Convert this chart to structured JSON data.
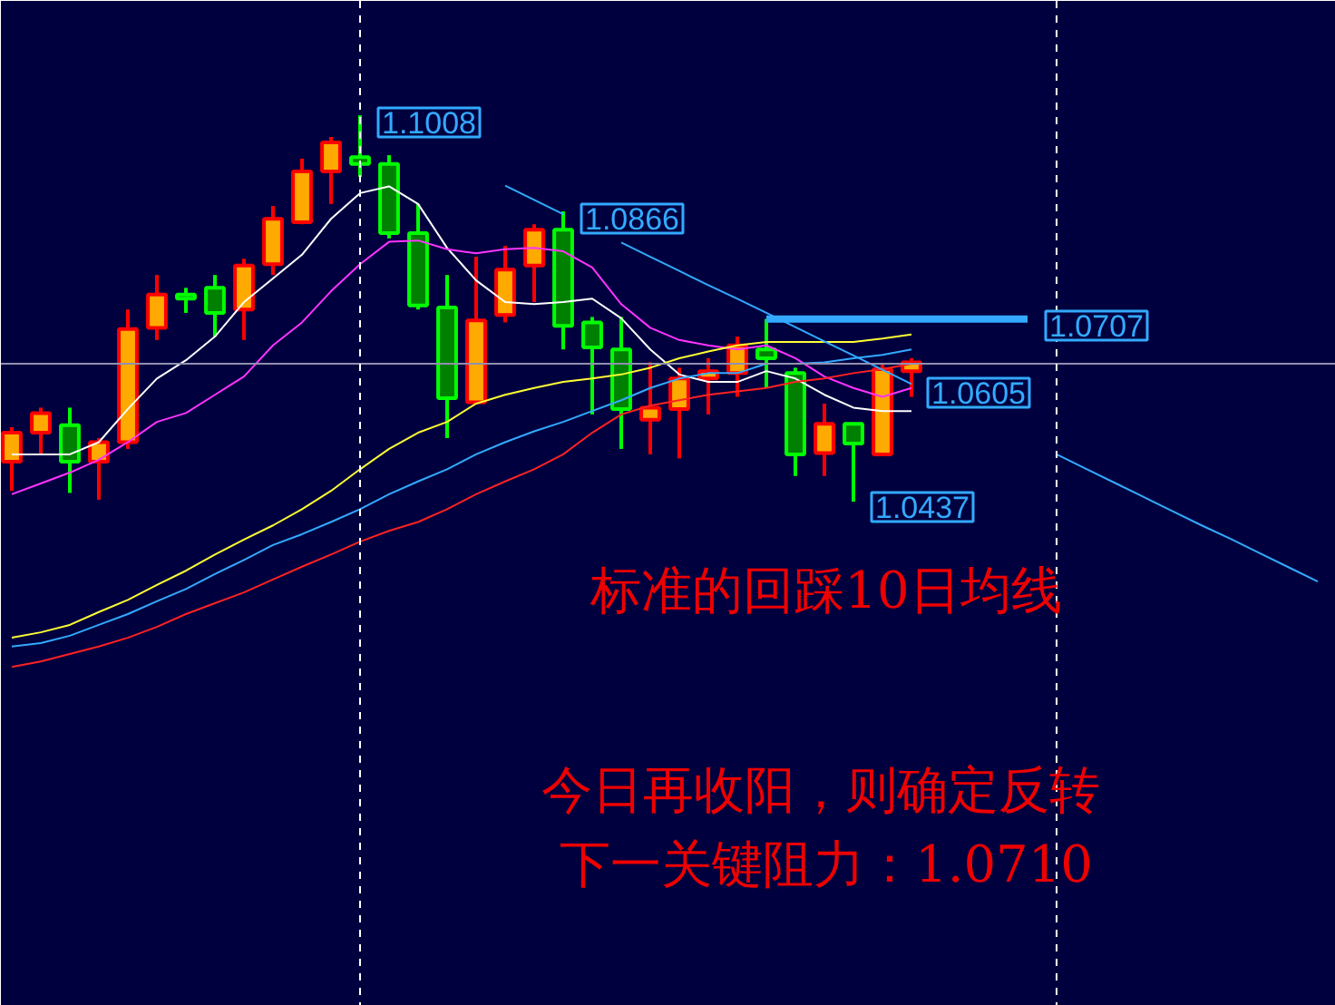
{
  "chart_data": {
    "type": "candlestick",
    "categories": [
      null,
      null,
      null,
      null,
      null,
      null,
      null,
      null,
      null,
      null,
      null,
      null,
      null,
      null,
      null,
      null,
      null,
      null,
      null,
      null,
      null,
      null,
      null,
      null,
      null,
      null,
      null,
      null,
      null,
      null,
      null,
      null,
      null,
      null,
      null,
      null,
      null,
      null,
      null,
      null,
      null,
      null,
      null,
      null,
      null,
      null
    ],
    "ohlc": [
      [
        1.0496,
        1.0547,
        1.0453,
        1.0539
      ],
      [
        1.0539,
        1.0576,
        1.0507,
        1.0568
      ],
      [
        1.055,
        1.0576,
        1.045,
        1.0496
      ],
      [
        1.0496,
        1.0531,
        1.044,
        1.0525
      ],
      [
        1.0525,
        1.0721,
        1.0515,
        1.0692
      ],
      [
        1.0694,
        1.0772,
        1.0676,
        1.0743
      ],
      [
        1.0743,
        1.0753,
        1.0716,
        1.0737
      ],
      [
        1.0753,
        1.0772,
        1.0681,
        1.0716
      ],
      [
        1.0721,
        1.0796,
        1.0676,
        1.0786
      ],
      [
        1.0788,
        1.0874,
        1.0772,
        1.0855
      ],
      [
        1.085,
        1.0944,
        1.0847,
        1.0925
      ],
      [
        1.0925,
        1.0976,
        1.0877,
        1.0968
      ],
      [
        1.0946,
        1.1008,
        1.0917,
        1.0936
      ],
      [
        1.0936,
        1.0949,
        1.0826,
        1.0834
      ],
      [
        1.0834,
        1.0877,
        1.0721,
        1.0727
      ],
      [
        1.0724,
        1.0772,
        1.0531,
        1.059
      ],
      [
        1.0584,
        1.0799,
        1.0584,
        1.0705
      ],
      [
        1.0713,
        1.0815,
        1.0702,
        1.078
      ],
      [
        1.0786,
        1.0847,
        1.0732,
        1.0839
      ],
      [
        1.0839,
        1.0866,
        1.0662,
        1.0697
      ],
      [
        1.0702,
        1.071,
        1.0566,
        1.0665
      ],
      [
        1.0662,
        1.071,
        1.0515,
        1.0574
      ],
      [
        1.0558,
        1.0643,
        1.0507,
        1.0576
      ],
      [
        1.0574,
        1.0635,
        1.0501,
        1.0619
      ],
      [
        1.0619,
        1.0649,
        1.0566,
        1.063
      ],
      [
        1.0627,
        1.0681,
        1.0592,
        1.0668
      ],
      [
        1.0662,
        1.0707,
        1.0605,
        1.0649
      ],
      [
        1.0627,
        1.0635,
        1.0475,
        1.0507
      ],
      [
        1.0509,
        1.0582,
        1.0475,
        1.0552
      ],
      [
        1.0552,
        1.0552,
        1.0437,
        1.0523
      ],
      [
        1.0507,
        1.0641,
        1.0507,
        1.0633
      ],
      [
        1.063,
        1.0649,
        1.0592,
        1.0643
      ],
      null,
      null,
      null,
      null,
      null,
      null,
      null,
      null,
      null,
      null,
      null,
      null,
      null,
      null
    ],
    "colors": [
      "#ffaa00",
      "#ffaa00",
      "#008000",
      "#ffaa00",
      "#ffaa00",
      "#ffaa00",
      "#008000",
      "#008000",
      "#ffaa00",
      "#ffaa00",
      "#ffaa00",
      "#ffaa00",
      "#008000",
      "#008000",
      "#008000",
      "#008000",
      "#ffaa00",
      "#ffaa00",
      "#ffaa00",
      "#008000",
      "#008000",
      "#008000",
      "#ffaa00",
      "#ffaa00",
      "#ffaa00",
      "#ffaa00",
      "#008000",
      "#008000",
      "#ffaa00",
      "#008000",
      "#ffaa00",
      "#ffaa00",
      null,
      null,
      null,
      null,
      null,
      null,
      null,
      null,
      null,
      null,
      null,
      null,
      null,
      null
    ],
    "series": [
      {
        "type": "line",
        "color": "#ffffff",
        "values": [
          1.0507,
          1.0507,
          1.0507,
          1.0525,
          1.0574,
          1.0619,
          1.0646,
          1.0681,
          1.0732,
          1.0767,
          1.0802,
          1.0855,
          1.0893,
          1.0903,
          1.0877,
          1.0812,
          1.0764,
          1.0732,
          1.0729,
          1.0732,
          1.0737,
          1.0708,
          1.0662,
          1.0625,
          1.0614,
          1.0614,
          1.063,
          1.0619,
          1.0595,
          1.0576,
          1.0571,
          1.0571,
          null,
          null,
          null,
          null,
          null,
          null,
          null,
          null,
          null,
          null,
          null,
          null,
          null,
          null
        ]
      },
      {
        "type": "line",
        "color": "#ff33ff",
        "values": [
          1.0448,
          1.0464,
          1.048,
          1.0499,
          1.0525,
          1.0555,
          1.0568,
          1.0595,
          1.0622,
          1.0668,
          1.0702,
          1.0748,
          1.0788,
          1.0821,
          1.0823,
          1.081,
          1.0804,
          1.081,
          1.0812,
          1.0807,
          1.0783,
          1.0729,
          1.0694,
          1.0676,
          1.0668,
          1.0662,
          1.0668,
          1.0649,
          1.0622,
          1.0605,
          1.0592,
          1.0605,
          null,
          null,
          null,
          null,
          null,
          null,
          null,
          null,
          null,
          null,
          null,
          null,
          null,
          null
        ]
      },
      {
        "type": "line",
        "color": "#ffff33",
        "values": [
          1.0236,
          1.0244,
          1.0255,
          1.0274,
          1.0292,
          1.0314,
          1.0335,
          1.0359,
          1.0381,
          1.0402,
          1.0426,
          1.0453,
          1.0485,
          1.0515,
          1.0539,
          1.0555,
          1.0582,
          1.0595,
          1.0605,
          1.0614,
          1.0619,
          1.0625,
          1.0635,
          1.0649,
          1.0659,
          1.0668,
          1.0673,
          1.0673,
          1.0673,
          1.0673,
          1.0678,
          1.0684,
          null,
          null,
          null,
          null,
          null,
          null,
          null,
          null,
          null,
          null,
          null,
          null,
          null,
          null
        ]
      },
      {
        "type": "line",
        "color": "#33aaff",
        "values": [
          1.0223,
          1.0228,
          1.0239,
          1.0255,
          1.0271,
          1.029,
          1.0308,
          1.033,
          1.0351,
          1.0373,
          1.0389,
          1.0407,
          1.0426,
          1.0448,
          1.0467,
          1.0485,
          1.0507,
          1.0525,
          1.0541,
          1.0555,
          1.0571,
          1.0587,
          1.0605,
          1.0619,
          1.0627,
          1.0627,
          1.0641,
          1.0641,
          1.0643,
          1.0649,
          1.0654,
          1.0662,
          null,
          null,
          null,
          null,
          null,
          null,
          null,
          null,
          null,
          null,
          null,
          null,
          null,
          null
        ]
      },
      {
        "type": "line",
        "color": "#ff2222",
        "values": [
          1.0193,
          1.0201,
          1.0212,
          1.0223,
          1.0236,
          1.0252,
          1.0271,
          1.0287,
          1.0303,
          1.0322,
          1.0341,
          1.0359,
          1.0378,
          1.0394,
          1.0407,
          1.0426,
          1.0448,
          1.0467,
          1.0485,
          1.0507,
          1.0539,
          1.0566,
          1.0579,
          1.0587,
          1.0595,
          1.06,
          1.0605,
          1.0614,
          1.0619,
          1.0627,
          1.0633,
          1.0641,
          null,
          null,
          null,
          null,
          null,
          null,
          null,
          null,
          null,
          null,
          null,
          null,
          null,
          null
        ]
      },
      {
        "type": "line",
        "color": "#33aaff",
        "values": [
          null,
          null,
          null,
          null,
          null,
          null,
          null,
          null,
          null,
          null,
          null,
          null,
          null,
          null,
          null,
          null,
          null,
          1.0904,
          1.0883,
          1.0862,
          null,
          1.082,
          1.0799,
          1.0778,
          1.0757,
          1.0737,
          1.0716,
          1.0695,
          1.0674,
          1.0653,
          1.0632,
          1.0611,
          null,
          null,
          null,
          null,
          1.0507,
          1.0486,
          1.0465,
          1.0444,
          1.0423,
          1.0402,
          1.0382,
          1.0361,
          1.034,
          1.0319
        ]
      },
      {
        "type": "line",
        "color": "#33aaff",
        "values": [
          null,
          null,
          null,
          null,
          null,
          null,
          null,
          null,
          null,
          null,
          null,
          null,
          null,
          null,
          null,
          null,
          null,
          null,
          null,
          null,
          null,
          null,
          null,
          null,
          null,
          null,
          1.0707,
          1.0707,
          1.0707,
          1.0707,
          1.0707,
          1.0707,
          1.0707,
          1.0707,
          1.0707,
          1.0707,
          null,
          null,
          null,
          null,
          null,
          null,
          null,
          null,
          null,
          null
        ]
      }
    ],
    "ref_lines": [
      {
        "axis": "y",
        "value": 1.0641,
        "color": "#9090b0",
        "line_style": "solid"
      }
    ],
    "annotations": [
      "1.1008",
      "1.0866",
      "1.0707",
      "1.0605",
      "1.0437",
      "标准的回踩10日均线",
      "今日再收阳，则确定反转",
      "下一关键阻力：1.0710"
    ],
    "ylim": [
      0.9692,
      1.1177
    ],
    "tick_labels": false,
    "grid": false
  }
}
